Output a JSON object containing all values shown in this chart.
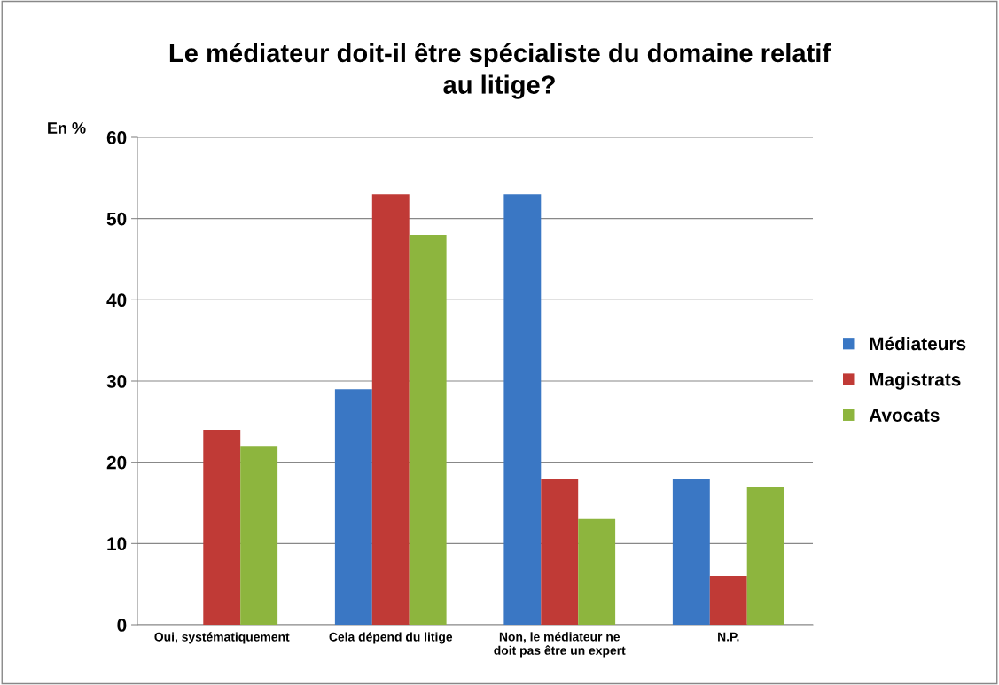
{
  "chart_data": {
    "type": "bar",
    "title": "Le médiateur doit-il être spécialiste du domaine relatif\nau litige?",
    "ylabel": "En %",
    "categories": [
      "Oui, systématiquement",
      "Cela dépend du litige",
      "Non, le médiateur ne\ndoit pas être un expert",
      "N.P."
    ],
    "series": [
      {
        "name": "Médiateurs",
        "color": "#3a77c4",
        "values": [
          0,
          29,
          53,
          18
        ]
      },
      {
        "name": "Magistrats",
        "color": "#c03a36",
        "values": [
          24,
          53,
          18,
          6
        ]
      },
      {
        "name": "Avocats",
        "color": "#8db53e",
        "values": [
          22,
          48,
          13,
          17
        ]
      }
    ],
    "ylim": [
      0,
      60
    ],
    "yticks": [
      0,
      10,
      20,
      30,
      40,
      50,
      60
    ],
    "grid": "y",
    "legend": "right"
  }
}
